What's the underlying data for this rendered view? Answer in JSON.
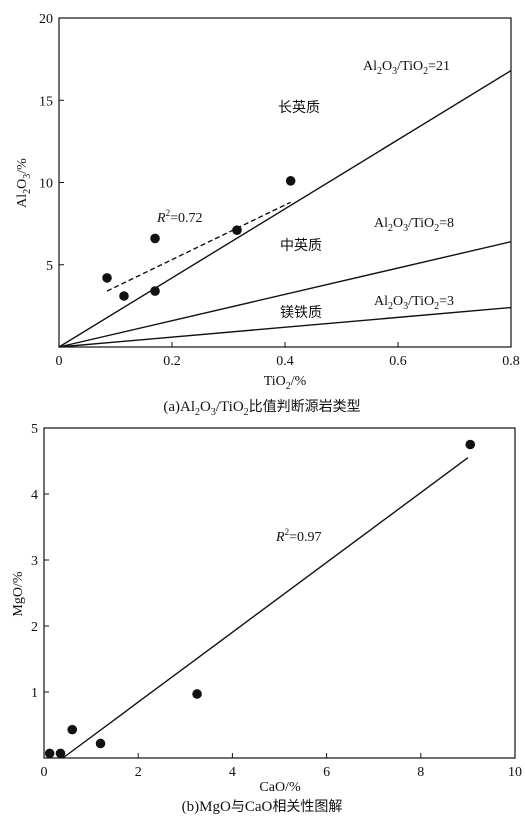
{
  "chart_data": [
    {
      "type": "scatter",
      "xlabel": "TiO2/%",
      "ylabel": "Al2O3/%",
      "xlim": [
        0,
        0.8
      ],
      "ylim": [
        0,
        20
      ],
      "xticks": [
        0,
        0.2,
        0.4,
        0.6,
        0.8
      ],
      "yticks": [
        5,
        10,
        15,
        20
      ],
      "xtick_labels": [
        "0",
        "0.2",
        "0.4",
        "0.6",
        "0.8"
      ],
      "ytick_labels": [
        "5",
        "10",
        "15",
        "20"
      ],
      "points": [
        {
          "x": 0.085,
          "y": 4.2
        },
        {
          "x": 0.115,
          "y": 3.1
        },
        {
          "x": 0.17,
          "y": 6.6
        },
        {
          "x": 0.17,
          "y": 3.4
        },
        {
          "x": 0.315,
          "y": 7.1
        },
        {
          "x": 0.41,
          "y": 10.1
        }
      ],
      "trend_line": {
        "x1": 0.085,
        "y1": 3.4,
        "x2": 0.41,
        "y2": 8.8,
        "style": "dashed"
      },
      "trend_label_var": "R",
      "trend_label_exp": "2",
      "trend_label_val": "=0.72",
      "reference_lines": [
        {
          "ratio": 21,
          "text": "Al2O3/TiO2=21"
        },
        {
          "ratio": 8,
          "text": "Al2O3/TiO2=8"
        },
        {
          "ratio": 3,
          "text": "Al2O3/TiO2=3"
        }
      ],
      "zones": [
        "长英质",
        "中英质",
        "镁铁质"
      ],
      "caption": "(a)Al2O3/TiO2比值判断源岩类型",
      "grid": false
    },
    {
      "type": "scatter",
      "xlabel": "CaO/%",
      "ylabel": "MgO/%",
      "xlim": [
        0,
        10
      ],
      "ylim": [
        0,
        5
      ],
      "xticks": [
        0,
        2,
        4,
        6,
        8,
        10
      ],
      "yticks": [
        1,
        2,
        3,
        4,
        5
      ],
      "xtick_labels": [
        "0",
        "2",
        "4",
        "6",
        "8",
        "10"
      ],
      "ytick_labels": [
        "1",
        "2",
        "3",
        "4",
        "5"
      ],
      "points": [
        {
          "x": 0.12,
          "y": 0.07
        },
        {
          "x": 0.35,
          "y": 0.07
        },
        {
          "x": 0.6,
          "y": 0.43
        },
        {
          "x": 1.2,
          "y": 0.22
        },
        {
          "x": 3.25,
          "y": 0.97
        },
        {
          "x": 9.05,
          "y": 4.75
        }
      ],
      "trend_line": {
        "x1": 0.4,
        "y1": 0.0,
        "x2": 9.0,
        "y2": 4.55,
        "style": "solid"
      },
      "trend_label_var": "R",
      "trend_label_exp": "2",
      "trend_label_val": "=0.97",
      "caption": "(b)MgO与CaO相关性图解",
      "grid": false
    }
  ]
}
